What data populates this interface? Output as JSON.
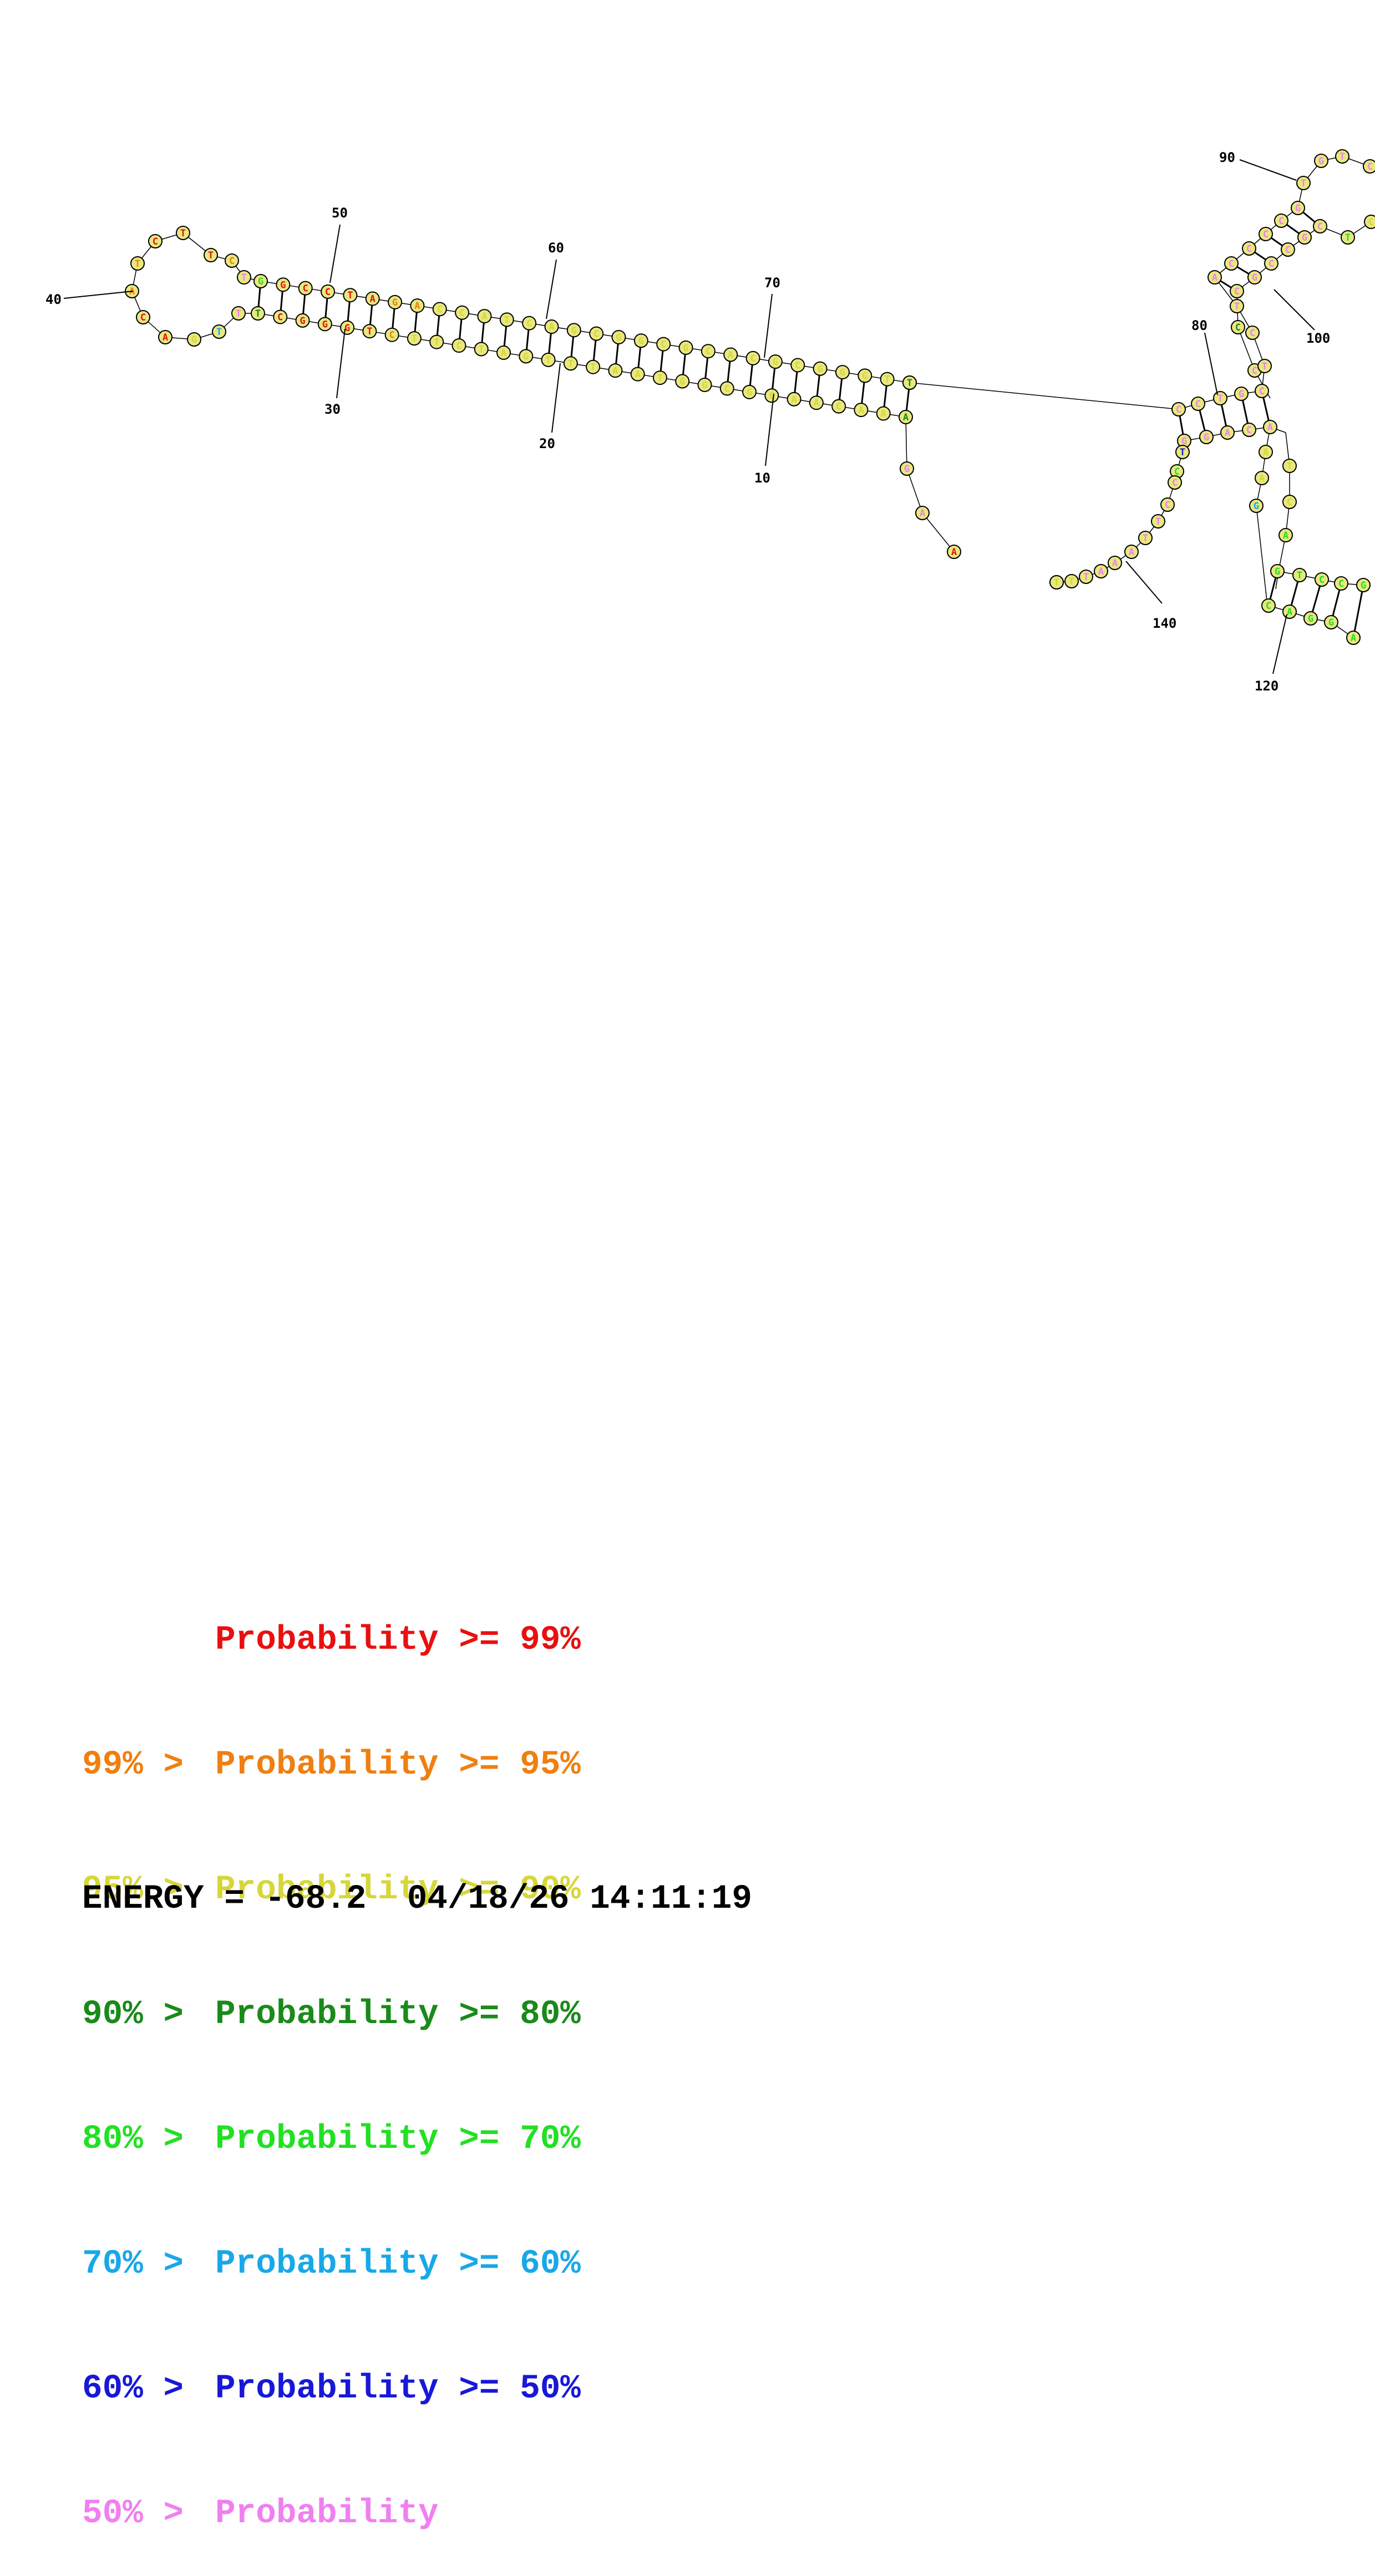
{
  "diagram": {
    "sequence_colors": {
      "very_high": "#e81010",
      "high": "#f07f10",
      "good": "#d6d63a",
      "medium": "#1a8a1a",
      "fair": "#22e022",
      "low": "#18a8e8",
      "lower": "#1818d8",
      "lowest": "#f07ff0"
    },
    "stem_fill": "#e8e880",
    "position_labels": [
      "10",
      "20",
      "30",
      "40",
      "50",
      "60",
      "70",
      "80",
      "90",
      "100",
      "120",
      "140"
    ]
  },
  "legend": {
    "rows": [
      {
        "prefix": "",
        "text": "Probability >= 99%",
        "color": "#e81010"
      },
      {
        "prefix": "99% > ",
        "text": "Probability >= 95%",
        "color": "#f07f10"
      },
      {
        "prefix": "95% > ",
        "text": "Probability >= 90%",
        "color": "#d6d63a"
      },
      {
        "prefix": "90% > ",
        "text": "Probability >= 80%",
        "color": "#1a8a1a"
      },
      {
        "prefix": "80% > ",
        "text": "Probability >= 70%",
        "color": "#22e022"
      },
      {
        "prefix": "70% > ",
        "text": "Probability >= 60%",
        "color": "#18a8e8"
      },
      {
        "prefix": "60% > ",
        "text": "Probability >= 50%",
        "color": "#1818d8"
      },
      {
        "prefix": "50% > ",
        "text": "Probability",
        "color": "#f07ff0"
      }
    ]
  },
  "energy_line": "ENERGY = -68.2  04/18/26 14:11:19"
}
